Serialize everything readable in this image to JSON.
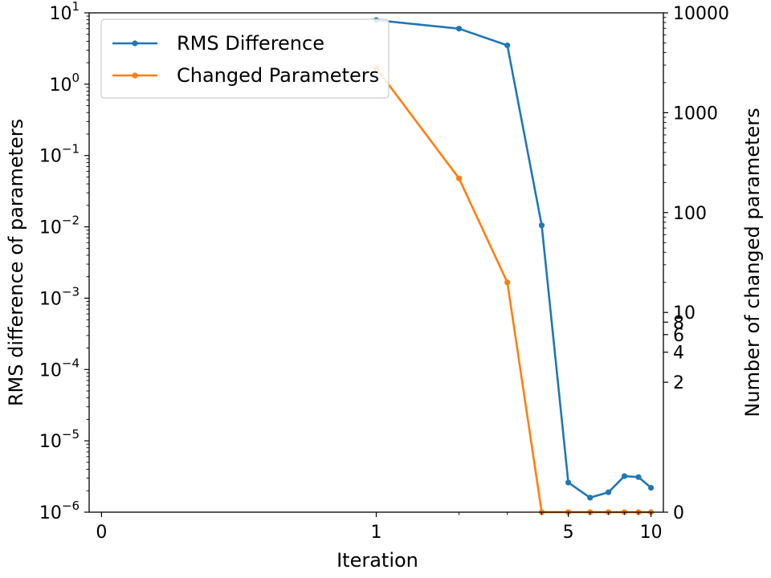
{
  "chart_data": {
    "type": "line",
    "xlabel": "Iteration",
    "ylabel_left": "RMS difference of parameters",
    "ylabel_right": "Number of changed parameters",
    "x_scale": "symlog",
    "x_ticks": [
      {
        "value": 0,
        "label": "0"
      },
      {
        "value": 1,
        "label": "1"
      },
      {
        "value": 5,
        "label": "5"
      },
      {
        "value": 10,
        "label": "10"
      }
    ],
    "y_left_scale": "log",
    "y_left_lim": [
      1e-06,
      10
    ],
    "y_left_ticks": [
      {
        "value": 1,
        "base": "10",
        "exp": "1"
      },
      {
        "value": 0,
        "base": "10",
        "exp": "0"
      },
      {
        "value": -1,
        "base": "10",
        "exp": "−1"
      },
      {
        "value": -2,
        "base": "10",
        "exp": "−2"
      },
      {
        "value": -3,
        "base": "10",
        "exp": "−3"
      },
      {
        "value": -4,
        "base": "10",
        "exp": "−4"
      },
      {
        "value": -5,
        "base": "10",
        "exp": "−5"
      },
      {
        "value": -6,
        "base": "10",
        "exp": "−6"
      }
    ],
    "y_right_scale": "symlog",
    "y_right_lim": [
      0,
      10000
    ],
    "y_right_ticks": [
      {
        "value": 0,
        "label": "0"
      },
      {
        "value": 2,
        "label": "2"
      },
      {
        "value": 4,
        "label": "4"
      },
      {
        "value": 6,
        "label": "6"
      },
      {
        "value": 8,
        "label": "8"
      },
      {
        "value": 10,
        "label": "10"
      },
      {
        "value": 100,
        "label": "100"
      },
      {
        "value": 1000,
        "label": "1000"
      },
      {
        "value": 10000,
        "label": "10000"
      }
    ],
    "legend_position": "top-left",
    "series": [
      {
        "name": "RMS Difference",
        "axis": "left",
        "color": "#1f77b4",
        "x": [
          1,
          2,
          3,
          4,
          5,
          6,
          7,
          8,
          9,
          10
        ],
        "y": [
          7.9,
          6.0,
          3.5,
          0.0105,
          2.6e-06,
          1.6e-06,
          1.9e-06,
          3.2e-06,
          3.1e-06,
          2.2e-06
        ]
      },
      {
        "name": "Changed Parameters",
        "axis": "right",
        "color": "#ff7f0e",
        "x": [
          1,
          2,
          3,
          4,
          5,
          6,
          7,
          8,
          9,
          10
        ],
        "y": [
          2800,
          220,
          20,
          0,
          0,
          0,
          0,
          0,
          0,
          0
        ]
      }
    ]
  }
}
